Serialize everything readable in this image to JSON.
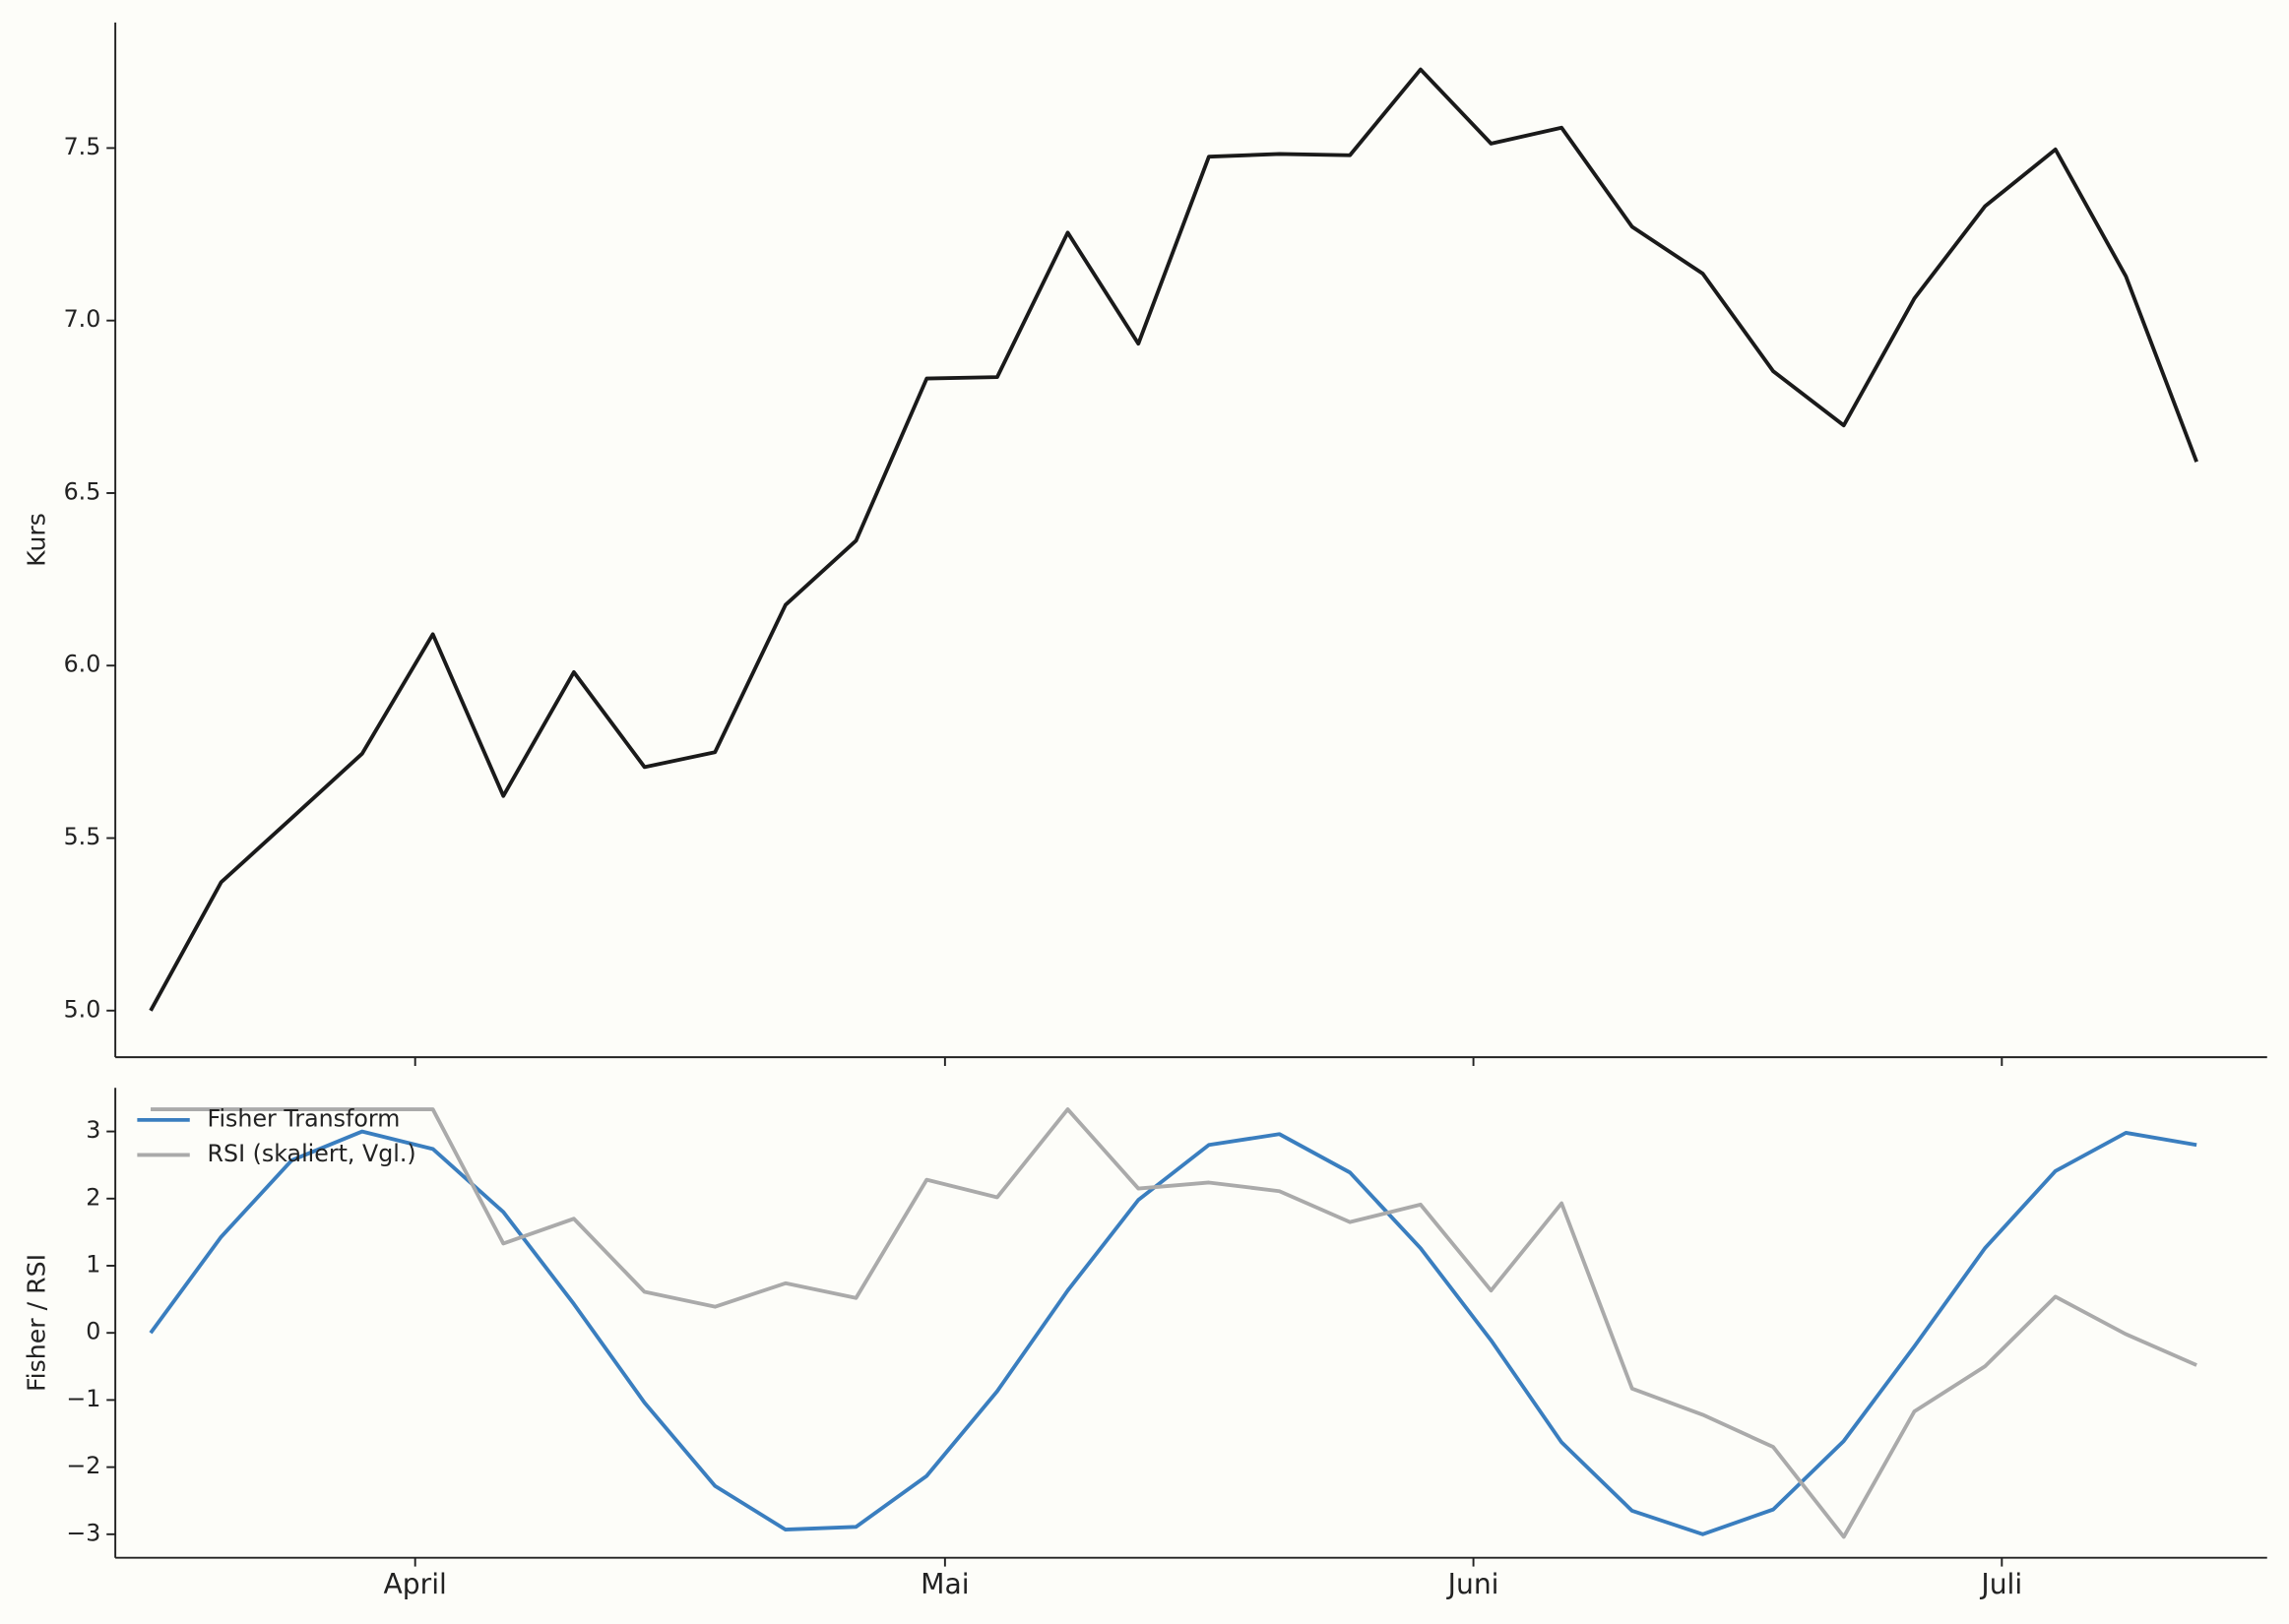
{
  "chart_data": [
    {
      "type": "line",
      "y_label": "Kurs",
      "x": [
        0,
        1,
        2,
        3,
        4,
        5,
        6,
        7,
        8,
        9,
        10,
        11,
        12,
        13,
        14,
        15,
        16,
        17,
        18,
        19,
        20,
        21,
        22,
        23,
        24,
        25,
        26,
        27,
        28,
        29
      ],
      "values": [
        5.0,
        5.372,
        5.558,
        5.745,
        6.091,
        5.622,
        5.981,
        5.706,
        5.749,
        6.176,
        6.362,
        6.832,
        6.836,
        7.255,
        6.933,
        7.475,
        7.483,
        7.479,
        7.728,
        7.513,
        7.559,
        7.272,
        7.136,
        6.853,
        6.696,
        7.064,
        7.331,
        7.496,
        7.128,
        6.591
      ],
      "color": "#1a1a1a",
      "xlim": [
        -0.5,
        30.0
      ],
      "ylim": [
        4.865,
        7.864
      ],
      "yticks": [
        {
          "value": 5,
          "label": "5.0"
        },
        5.5,
        {
          "value": 6,
          "label": "6.0"
        },
        6.5,
        {
          "value": 7,
          "label": "7.0"
        },
        7.5
      ]
    },
    {
      "type": "line",
      "y_label": "Fisher / RSI",
      "x": [
        0,
        1,
        2,
        3,
        4,
        5,
        6,
        7,
        8,
        9,
        10,
        11,
        12,
        13,
        14,
        15,
        16,
        17,
        18,
        19,
        20,
        21,
        22,
        23,
        24,
        25,
        26,
        27,
        28,
        29
      ],
      "series": [
        {
          "name": "Fisher Transform",
          "color": "#3a7ebf",
          "values": [
            0,
            1.43,
            2.57,
            3.0,
            2.74,
            1.8,
            0.43,
            -1.04,
            -2.28,
            -2.93,
            -2.89,
            -2.13,
            -0.87,
            0.63,
            1.98,
            2.8,
            2.96,
            2.39,
            1.26,
            -0.11,
            -1.63,
            -2.65,
            -3.0,
            -2.63,
            -1.61,
            -0.2,
            1.26,
            2.41,
            2.98,
            2.8
          ]
        },
        {
          "name": "RSI (skaliert, Vgl.)",
          "color": "#aaaaaa",
          "values": [
            3.33,
            3.33,
            3.33,
            3.33,
            3.33,
            1.33,
            1.7,
            0.61,
            0.39,
            0.74,
            0.52,
            2.28,
            2.02,
            3.33,
            2.15,
            2.24,
            2.11,
            1.65,
            1.91,
            0.63,
            1.93,
            -0.83,
            -1.22,
            -1.7,
            -3.04,
            -1.17,
            -0.5,
            0.54,
            -0.02,
            -0.48
          ]
        }
      ],
      "xlim": [
        -0.5,
        30.0
      ],
      "ylim": [
        -3.35,
        3.65
      ],
      "xticks": [
        {
          "value": 3.75,
          "label": "April"
        },
        {
          "value": 11.26,
          "label": "Mai"
        },
        {
          "value": 18.75,
          "label": "Juni"
        },
        {
          "value": 26.24,
          "label": "Juli"
        }
      ],
      "yticks": [
        {
          "value": -3,
          "label": "−3"
        },
        {
          "value": -2,
          "label": "−2"
        },
        {
          "value": -1,
          "label": "−1"
        },
        0,
        1,
        2,
        3
      ],
      "legend": "upper left"
    }
  ]
}
